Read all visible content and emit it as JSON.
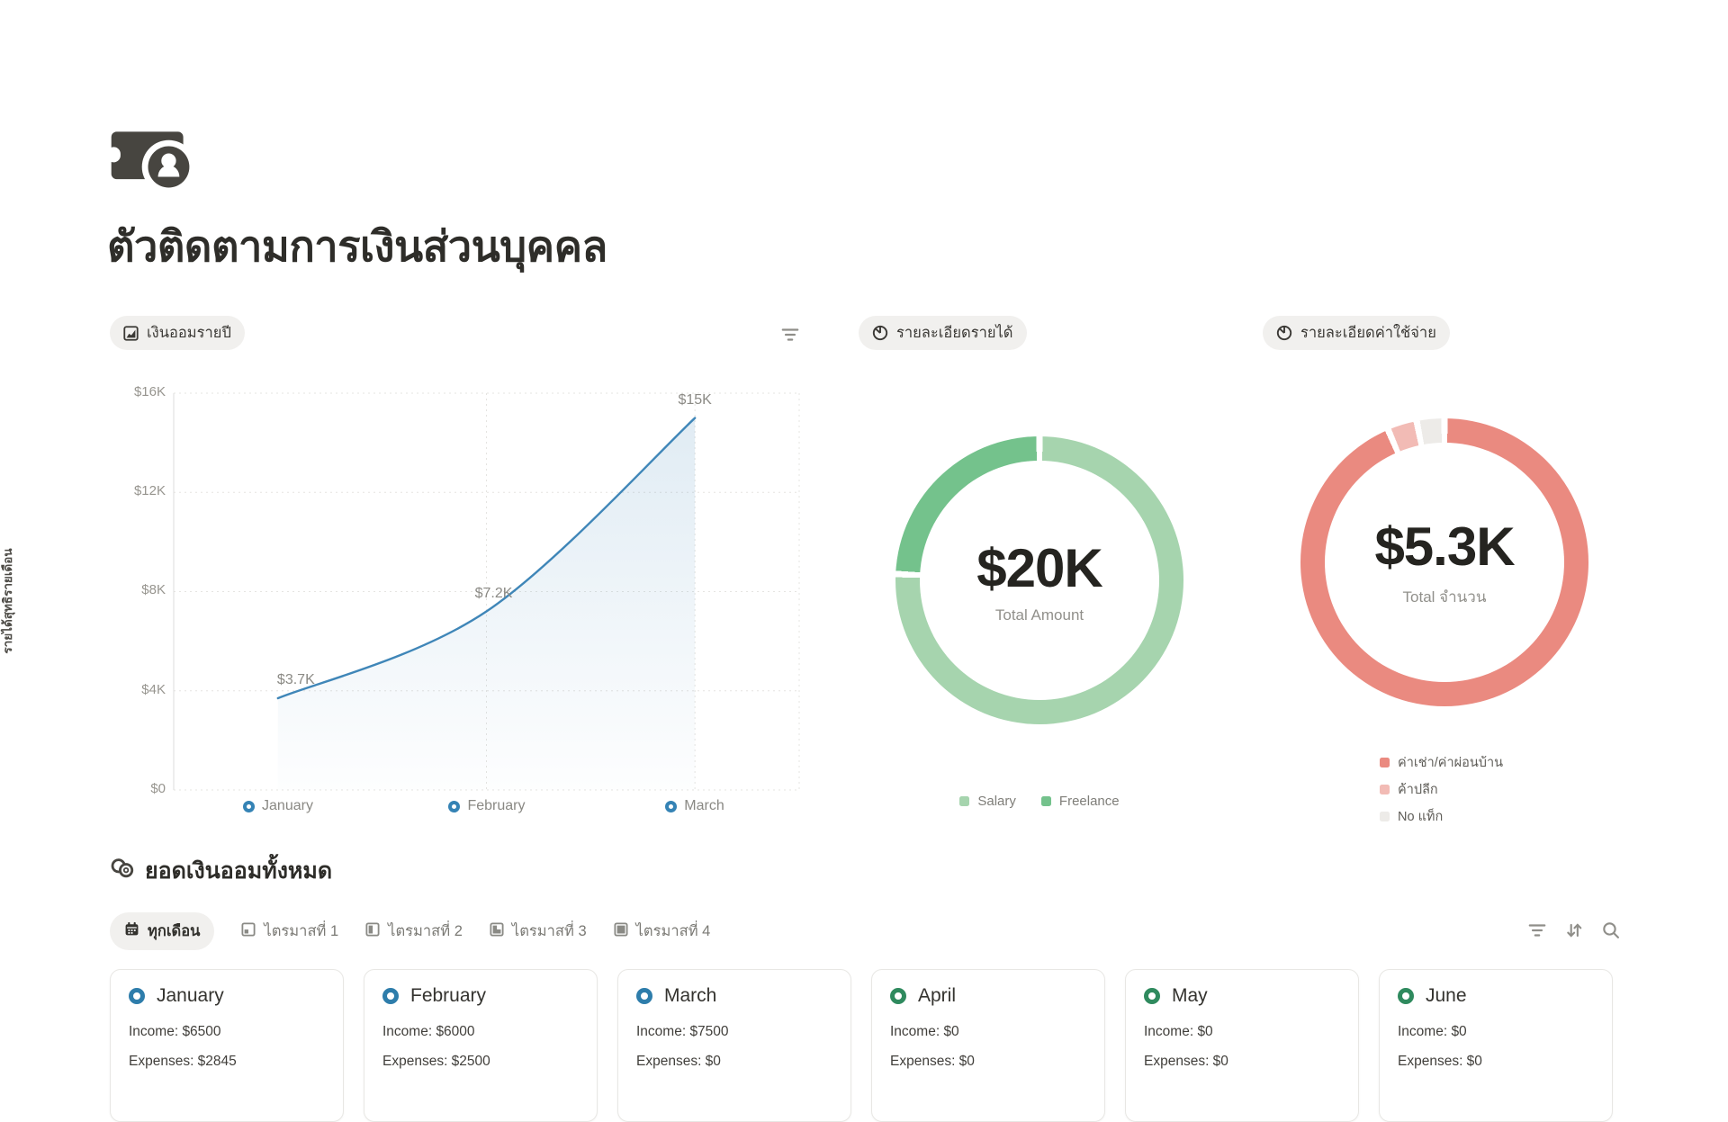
{
  "header": {
    "title": "ตัวติดตามการเงินส่วนบุคคล"
  },
  "panels": {
    "savings": {
      "badge": "เงินออมรายปี"
    },
    "income": {
      "badge": "รายละเอียดรายได้"
    },
    "expense": {
      "badge": "รายละเอียดค่าใช้จ่าย"
    }
  },
  "chart_data": [
    {
      "id": "annual-savings",
      "type": "area-line",
      "title": "เงินออมรายปี",
      "x": [
        "January",
        "February",
        "March"
      ],
      "values": [
        3700,
        7200,
        15000
      ],
      "point_labels": [
        "$3.7K",
        "$7.2K",
        "$15K"
      ],
      "ylabel": "รายได้สุทธิรายเดือน",
      "ylim": [
        0,
        16000
      ],
      "yticks": [
        0,
        4000,
        8000,
        12000,
        16000
      ],
      "ytick_labels": [
        "$16K",
        "$12K",
        "$8K",
        "$4K",
        "$0"
      ],
      "line_color": "#3f86b8",
      "grid": "dotted"
    },
    {
      "id": "income-breakdown",
      "type": "donut",
      "title": "รายละเอียดรายได้",
      "center_value": "$20K",
      "center_label": "Total Amount",
      "legend_position": "bottom",
      "segments": [
        {
          "label": "Salary",
          "fraction": 0.757,
          "color": "#a6d4ae"
        },
        {
          "label": "Freelance",
          "fraction": 0.243,
          "color": "#74c28c"
        }
      ]
    },
    {
      "id": "expense-breakdown",
      "type": "donut",
      "title": "รายละเอียดค่าใช้จ่าย",
      "center_value": "$5.3K",
      "center_label": "Total จำนวน",
      "legend_position": "right-bottom",
      "segments": [
        {
          "label": "ค่าเช่า/ค่าผ่อนบ้าน",
          "fraction": 0.936,
          "color": "#ea8a80"
        },
        {
          "label": "ค้าปลีก",
          "fraction": 0.033,
          "color": "#f2bbb5"
        },
        {
          "label": "No แท็ก",
          "fraction": 0.031,
          "color": "#edebe8"
        }
      ]
    }
  ],
  "summary": {
    "title": "ยอดเงินออมทั้งหมด",
    "tabs": [
      {
        "label": "ทุกเดือน",
        "active": true
      },
      {
        "label": "ไตรมาสที่ 1",
        "active": false
      },
      {
        "label": "ไตรมาสที่ 2",
        "active": false
      },
      {
        "label": "ไตรมาสที่ 3",
        "active": false
      },
      {
        "label": "ไตรมาสที่ 4",
        "active": false
      }
    ],
    "cards": [
      {
        "month": "January",
        "income": "Income: $6500",
        "expenses": "Expenses: $2845",
        "dot_color": "#2e7dab"
      },
      {
        "month": "February",
        "income": "Income: $6000",
        "expenses": "Expenses: $2500",
        "dot_color": "#2e7dab"
      },
      {
        "month": "March",
        "income": "Income: $7500",
        "expenses": "Expenses: $0",
        "dot_color": "#2e7dab"
      },
      {
        "month": "April",
        "income": "Income: $0",
        "expenses": "Expenses: $0",
        "dot_color": "#2f8a5e"
      },
      {
        "month": "May",
        "income": "Income: $0",
        "expenses": "Expenses: $0",
        "dot_color": "#2f8a5e"
      },
      {
        "month": "June",
        "income": "Income: $0",
        "expenses": "Expenses: $0",
        "dot_color": "#2f8a5e"
      }
    ]
  },
  "colors": {
    "line_blue": "#3f86b8",
    "ring_blue": "#2e7dab",
    "ring_green": "#2f8a5e",
    "pill_bg": "#f1f0ee",
    "text_dark": "#37352f",
    "text_muted": "#8a8984"
  }
}
